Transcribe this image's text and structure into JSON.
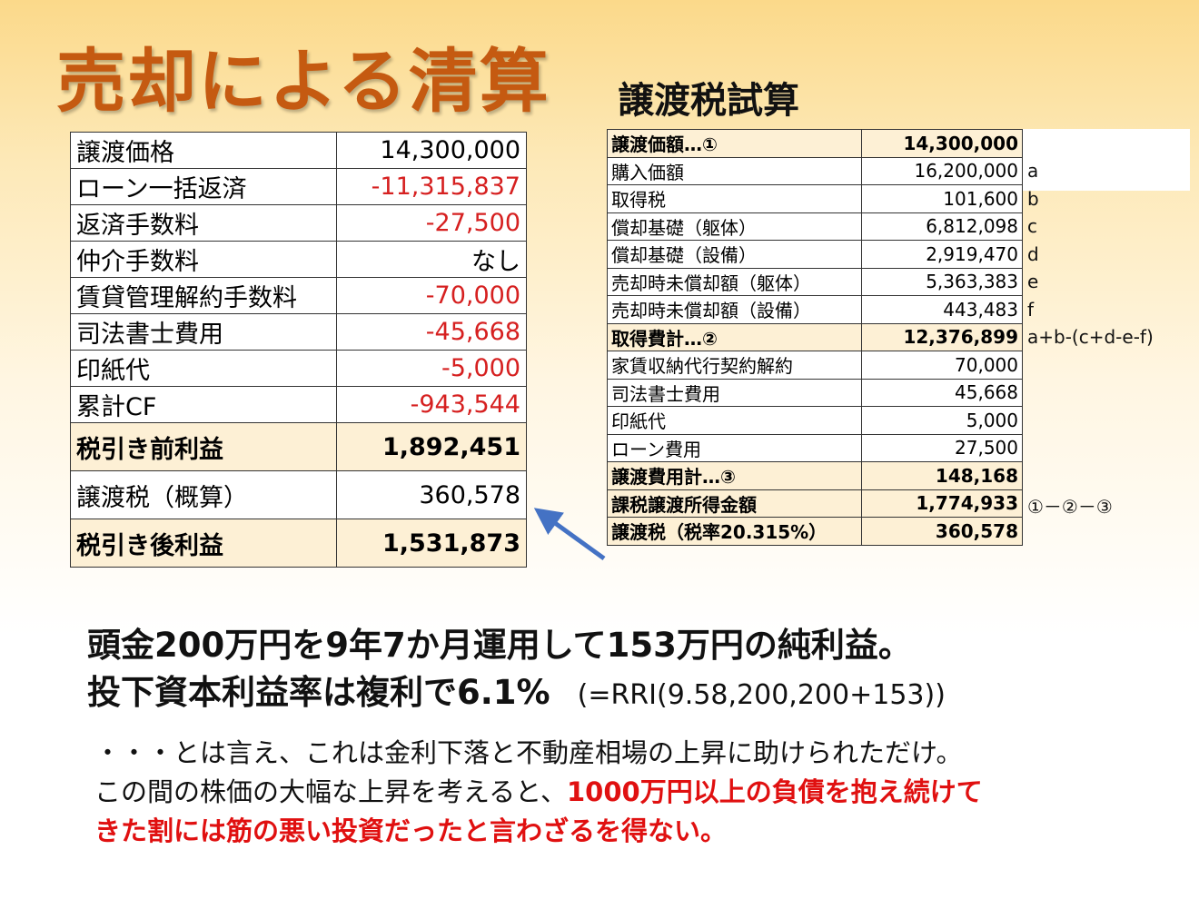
{
  "title": "売却による清算",
  "left_table": {
    "rows": [
      [
        "譲渡価格",
        "14,300,000"
      ],
      [
        "ローン一括返済",
        "-11,315,837"
      ],
      [
        "返済手数料",
        "-27,500"
      ],
      [
        "仲介手数料",
        "なし"
      ],
      [
        "賃貸管理解約手数料",
        "-70,000"
      ],
      [
        "司法書士費用",
        "-45,668"
      ],
      [
        "印紙代",
        "-5,000"
      ],
      [
        "累計CF",
        "-943,544"
      ],
      [
        "税引き前利益",
        "1,892,451"
      ],
      [
        "譲渡税（概算）",
        "360,578"
      ],
      [
        "税引き後利益",
        "1,531,873"
      ]
    ]
  },
  "right_title": "譲渡税試算",
  "right_table": {
    "rows": [
      [
        "譲渡価額…①",
        "14,300,000"
      ],
      [
        "購入価額",
        "16,200,000",
        "a"
      ],
      [
        "取得税",
        "101,600",
        "b"
      ],
      [
        "償却基礎（躯体）",
        "6,812,098",
        "c"
      ],
      [
        "償却基礎（設備）",
        "2,919,470",
        "d"
      ],
      [
        "売却時未償却額（躯体）",
        "5,363,383",
        "e"
      ],
      [
        "売却時未償却額（設備）",
        "443,483",
        "f"
      ],
      [
        "取得費計…②",
        "12,376,899",
        "a+b-(c+d-e-f)"
      ],
      [
        "家賃収納代行契約解約",
        "70,000"
      ],
      [
        "司法書士費用",
        "45,668"
      ],
      [
        "印紙代",
        "5,000"
      ],
      [
        "ローン費用",
        "27,500"
      ],
      [
        "譲渡費用計…③",
        "148,168"
      ],
      [
        "課税譲渡所得金額",
        "1,774,933",
        "①－②－③"
      ],
      [
        "譲渡税（税率20.315%）",
        "360,578"
      ]
    ]
  },
  "summary": {
    "line1": "頭金200万円を9年7か月運用して153万円の純利益。",
    "line2": "投下資本利益率は複利で6.1%",
    "formula": "(=RRI(9.58,200,200+153))"
  },
  "comment": {
    "line1": "・・・とは言え、これは金利下落と不動産相場の上昇に助けられただけ。",
    "line2": "この間の株価の大幅な上昇を考えると、",
    "line2_red": "1000万円以上の負債を抱え続けて",
    "line3_red": "きた割には筋の悪い投資だったと言わざるを得ない。"
  }
}
